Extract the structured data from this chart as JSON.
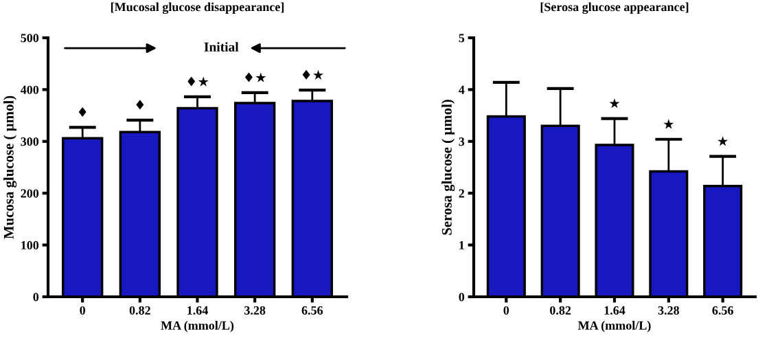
{
  "chart_data": [
    {
      "type": "bar",
      "title": "[Mucosal glucose disappearance]",
      "xlabel": "MA (mmol/L)",
      "ylabel": "Mucosa glucose ( µmol)",
      "categories": [
        "0",
        "0.82",
        "1.64",
        "3.28",
        "6.56"
      ],
      "values": [
        306,
        318,
        364,
        374,
        378
      ],
      "errors": [
        21,
        23,
        22,
        20,
        21
      ],
      "color": "#1818c0",
      "ylim": [
        0,
        500
      ],
      "yticks": [
        0,
        100,
        200,
        300,
        400,
        500
      ],
      "annotations": [
        "Initial",
        "♦",
        "♦",
        "♦★",
        "♦★",
        "♦★"
      ]
    },
    {
      "type": "bar",
      "title": "[Serosa glucose appearance]",
      "xlabel": "MA (mmol/L)",
      "ylabel": "Serosa glucose ( µmol)",
      "categories": [
        "0",
        "0.82",
        "1.64",
        "3.28",
        "6.56"
      ],
      "values": [
        3.48,
        3.3,
        2.93,
        2.42,
        2.14
      ],
      "errors": [
        0.66,
        0.72,
        0.51,
        0.62,
        0.57
      ],
      "color": "#1818c0",
      "ylim": [
        0,
        5
      ],
      "yticks": [
        0,
        1,
        2,
        3,
        4,
        5
      ],
      "annotations": [
        "★",
        "★",
        "★"
      ]
    }
  ]
}
